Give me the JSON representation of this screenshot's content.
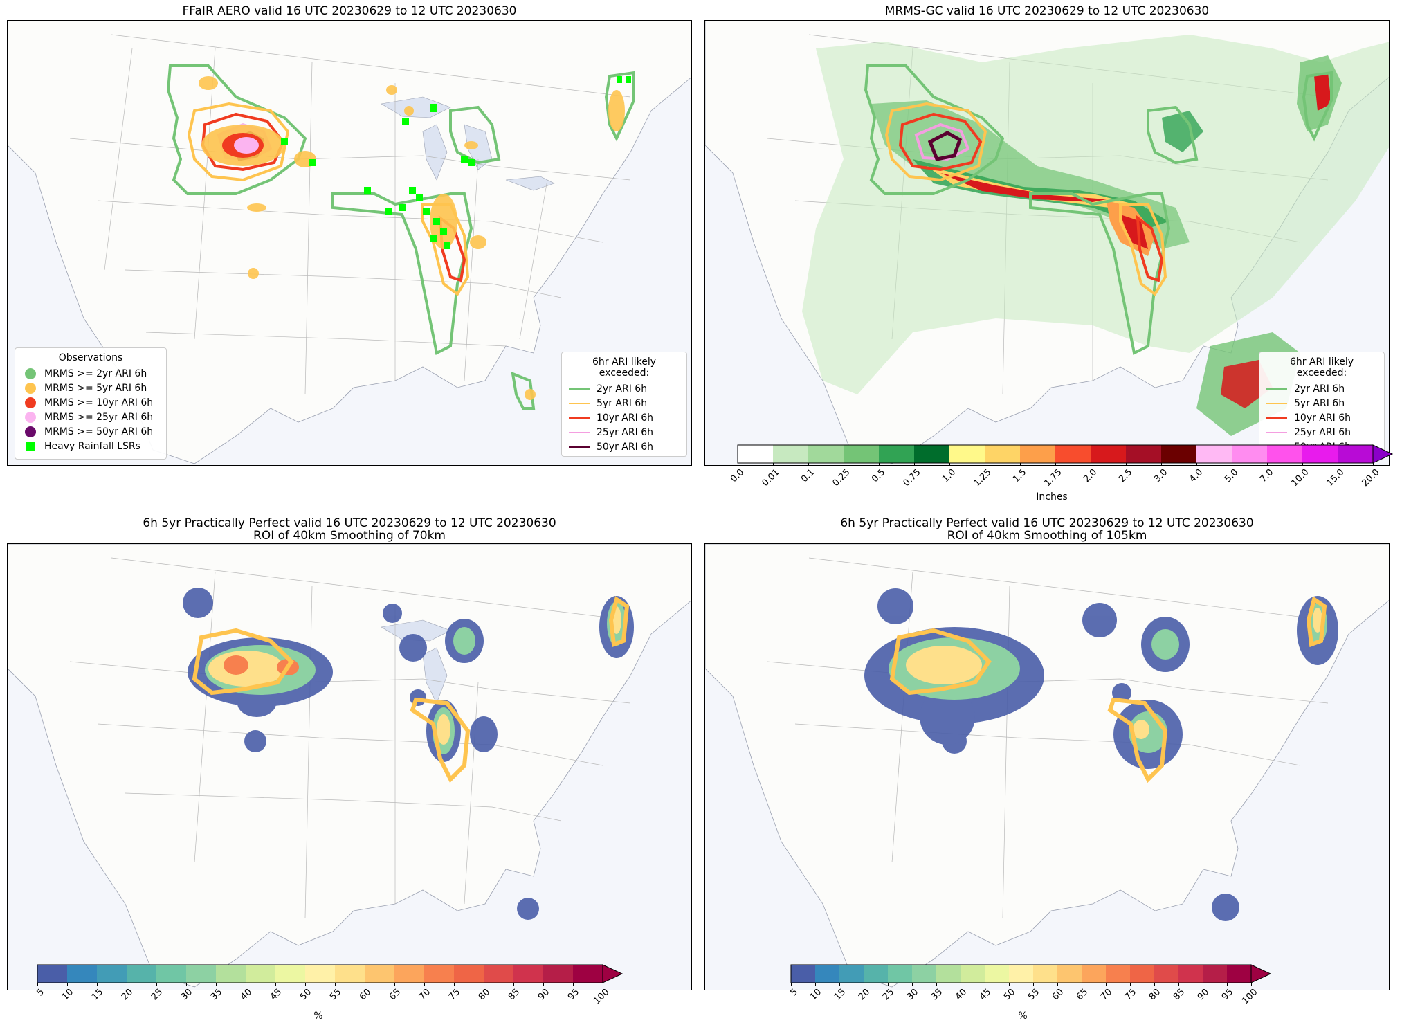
{
  "panels": [
    {
      "id": "p1",
      "title": "FFaIR AERO valid 16 UTC 20230629 to 12 UTC 20230630",
      "title2": ""
    },
    {
      "id": "p2",
      "title": "MRMS-GC valid 16 UTC 20230629 to 12 UTC 20230630",
      "title2": ""
    },
    {
      "id": "p3",
      "title": "6h 5yr Practically Perfect valid 16 UTC 20230629 to 12 UTC 20230630",
      "title2": "ROI of 40km Smoothing of 70km"
    },
    {
      "id": "p4",
      "title": "6h 5yr Practically Perfect valid 16 UTC 20230629 to 12 UTC 20230630",
      "title2": "ROI of 40km Smoothing of 105km"
    }
  ],
  "obs_legend": {
    "title": "Observations",
    "items": [
      {
        "label": "MRMS >= 2yr ARI 6h",
        "color": "#74c476",
        "shape": "circle"
      },
      {
        "label": "MRMS >= 5yr ARI 6h",
        "color": "#fec44f",
        "shape": "circle"
      },
      {
        "label": "MRMS >= 10yr ARI 6h",
        "color": "#f03b20",
        "shape": "circle"
      },
      {
        "label": "MRMS >= 25yr ARI 6h",
        "color": "#fbb4f0",
        "shape": "circle"
      },
      {
        "label": "MRMS >= 50yr ARI 6h",
        "color": "#6a0a6a",
        "shape": "circle"
      },
      {
        "label": "Heavy Rainfall LSRs",
        "color": "#00ff00",
        "shape": "square"
      }
    ]
  },
  "ari_legend": {
    "title": "6hr ARI likely exceeded:",
    "items": [
      {
        "label": "2yr ARI 6h",
        "color": "#74c476"
      },
      {
        "label": "5yr ARI 6h",
        "color": "#fec44f"
      },
      {
        "label": "10yr ARI 6h",
        "color": "#f03b20"
      },
      {
        "label": "25yr ARI 6h",
        "color": "#f49ee0"
      },
      {
        "label": "50yr ARI 6h",
        "color": "#5a0030"
      }
    ]
  },
  "precip_colorbar": {
    "label": "Inches",
    "ticks": [
      "0.0",
      "0.01",
      "0.1",
      "0.25",
      "0.5",
      "0.75",
      "1.0",
      "1.25",
      "1.5",
      "1.75",
      "2.0",
      "2.5",
      "3.0",
      "4.0",
      "5.0",
      "7.0",
      "10.0",
      "15.0",
      "20.0"
    ],
    "colors": [
      "#ffffff",
      "#c7e9c0",
      "#a1d99b",
      "#74c476",
      "#31a354",
      "#006d2c",
      "#fff98a",
      "#fed466",
      "#fd9f4a",
      "#f84d2d",
      "#d7191c",
      "#a50f26",
      "#6b0000",
      "#ffb9f4",
      "#ff8cf0",
      "#ff52ec",
      "#e81bed",
      "#b80bd6"
    ],
    "extend_color": "#8b00c8"
  },
  "percent_colorbar": {
    "label": "%",
    "ticks": [
      "5",
      "10",
      "15",
      "20",
      "25",
      "30",
      "35",
      "40",
      "45",
      "50",
      "55",
      "60",
      "65",
      "70",
      "75",
      "80",
      "85",
      "90",
      "95",
      "100"
    ],
    "colors": [
      "#4a5ea8",
      "#3587bc",
      "#429cb6",
      "#56b3aa",
      "#70c6a5",
      "#8dd1a3",
      "#b3e09c",
      "#d1ec9c",
      "#ecf7a2",
      "#fff1a8",
      "#fee08b",
      "#fdc56f",
      "#fca55c",
      "#f7804e",
      "#ef6546",
      "#e04b4a",
      "#d0334d",
      "#b51e48",
      "#9e0142"
    ],
    "extend_color": "#9e0142"
  }
}
